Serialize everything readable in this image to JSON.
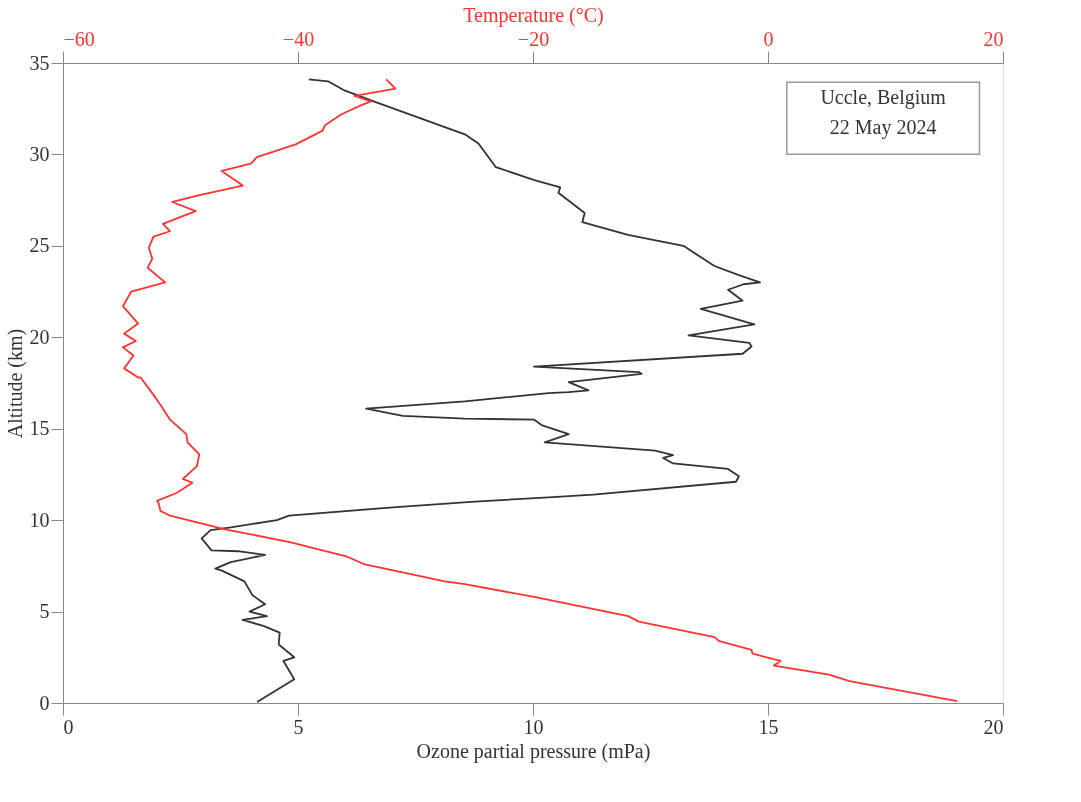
{
  "chart_data": {
    "type": "line",
    "xlabel": "Ozone partial pressure (mPa)",
    "x2label": "Temperature (°C)",
    "ylabel": "Altitude (km)",
    "annotations": [
      "Uccle, Belgium",
      "22 May 2024"
    ],
    "xlim": [
      0,
      20
    ],
    "xticks": [
      0,
      5,
      10,
      15,
      20
    ],
    "x2lim": [
      -60,
      20
    ],
    "x2ticks": [
      {
        "value": -60,
        "label": "−60"
      },
      {
        "value": -40,
        "label": "−40"
      },
      {
        "value": -20,
        "label": "−20"
      },
      0,
      20
    ],
    "ylim": [
      0,
      35
    ],
    "yticks": [
      0,
      5,
      10,
      15,
      20,
      25,
      30,
      35
    ],
    "tick_labels": "xy",
    "grid": false,
    "marker": "none",
    "line_style": "solid",
    "series": [
      {
        "color": "#333333",
        "x": [
          4.13,
          4.92,
          4.69,
          4.92,
          4.59,
          4.61,
          4.28,
          3.82,
          4.34,
          3.97,
          4.3,
          4.03,
          3.86,
          3.37,
          3.24,
          3.57,
          4.3,
          3.72,
          3.16,
          2.95,
          3.14,
          3.57,
          4.55,
          4.81,
          7.02,
          8.68,
          10.33,
          11.28,
          14.32,
          14.38,
          14.15,
          12.98,
          12.77,
          12.98,
          12.6,
          10.25,
          10.76,
          10.18,
          10.02,
          8.55,
          7.23,
          6.45,
          8.55,
          10.33,
          10.76,
          11.18,
          10.76,
          12.31,
          12.25,
          10.02,
          14.46,
          14.65,
          14.6,
          13.31,
          14.71,
          13.57,
          14.46,
          14.15,
          14.48,
          14.83,
          14.38,
          13.86,
          13.2,
          12.02,
          11.05,
          11.1,
          10.54,
          10.58,
          10.03,
          9.21,
          8.84,
          8.55,
          7.58,
          6.61,
          5.99,
          5.64,
          5.23
        ],
        "values": [
          0.05,
          1.3,
          2.3,
          2.5,
          3.2,
          3.85,
          4.2,
          4.55,
          4.75,
          5.0,
          5.4,
          5.9,
          6.65,
          7.25,
          7.35,
          7.7,
          8.1,
          8.3,
          8.35,
          9.0,
          9.45,
          9.6,
          10.0,
          10.25,
          10.7,
          11.0,
          11.25,
          11.4,
          12.1,
          12.4,
          12.8,
          13.1,
          13.4,
          13.55,
          13.8,
          14.25,
          14.7,
          15.2,
          15.5,
          15.55,
          15.7,
          16.1,
          16.5,
          16.95,
          17.0,
          17.1,
          17.55,
          18.0,
          18.1,
          18.4,
          19.1,
          19.5,
          19.7,
          20.1,
          20.7,
          21.55,
          22.0,
          22.6,
          22.9,
          23.0,
          23.4,
          23.9,
          25.0,
          25.6,
          26.3,
          26.8,
          27.9,
          28.2,
          28.6,
          29.3,
          30.6,
          31.1,
          32.0,
          32.9,
          33.5,
          34.0,
          34.1
        ]
      },
      {
        "color": "#ff3333",
        "axis": "x2",
        "x": [
          16.1,
          6.94,
          5.2,
          0.5,
          1.07,
          -1.32,
          -1.4,
          -4.2,
          -4.55,
          -11.0,
          -11.9,
          -19.9,
          -25.8,
          -27.5,
          -34.4,
          -35.8,
          -40.7,
          -46.2,
          -50.9,
          -51.7,
          -51.9,
          -52.0,
          -50.3,
          -49.0,
          -49.8,
          -48.6,
          -48.4,
          -49.4,
          -49.5,
          -50.9,
          -51.7,
          -52.3,
          -53.4,
          -53.6,
          -54.8,
          -54.0,
          -54.9,
          -53.8,
          -54.8,
          -53.6,
          -54.9,
          -54.2,
          -51.3,
          -52.8,
          -52.4,
          -52.7,
          -52.3,
          -50.9,
          -51.5,
          -48.7,
          -50.7,
          -48.2,
          -44.7,
          -46.5,
          -44.0,
          -43.5,
          -40.2,
          -37.9,
          -37.7,
          -36.3,
          -34.6,
          -33.8,
          -35.2,
          -31.7,
          -32.5
        ],
        "values": [
          0.1,
          1.2,
          1.55,
          2.05,
          2.3,
          2.7,
          2.9,
          3.4,
          3.6,
          4.45,
          4.75,
          5.8,
          6.5,
          6.65,
          7.6,
          8.0,
          8.8,
          9.5,
          10.25,
          10.5,
          11.0,
          11.05,
          11.5,
          12.05,
          12.25,
          12.95,
          13.6,
          14.25,
          14.7,
          15.5,
          16.3,
          16.85,
          17.8,
          17.8,
          18.3,
          19.0,
          19.45,
          19.8,
          20.2,
          20.75,
          21.7,
          22.5,
          23.0,
          23.8,
          24.3,
          24.9,
          25.5,
          25.8,
          26.2,
          26.9,
          27.4,
          27.8,
          28.3,
          29.1,
          29.5,
          29.85,
          30.55,
          31.3,
          31.6,
          32.2,
          32.7,
          32.9,
          33.2,
          33.6,
          34.1
        ]
      }
    ]
  }
}
